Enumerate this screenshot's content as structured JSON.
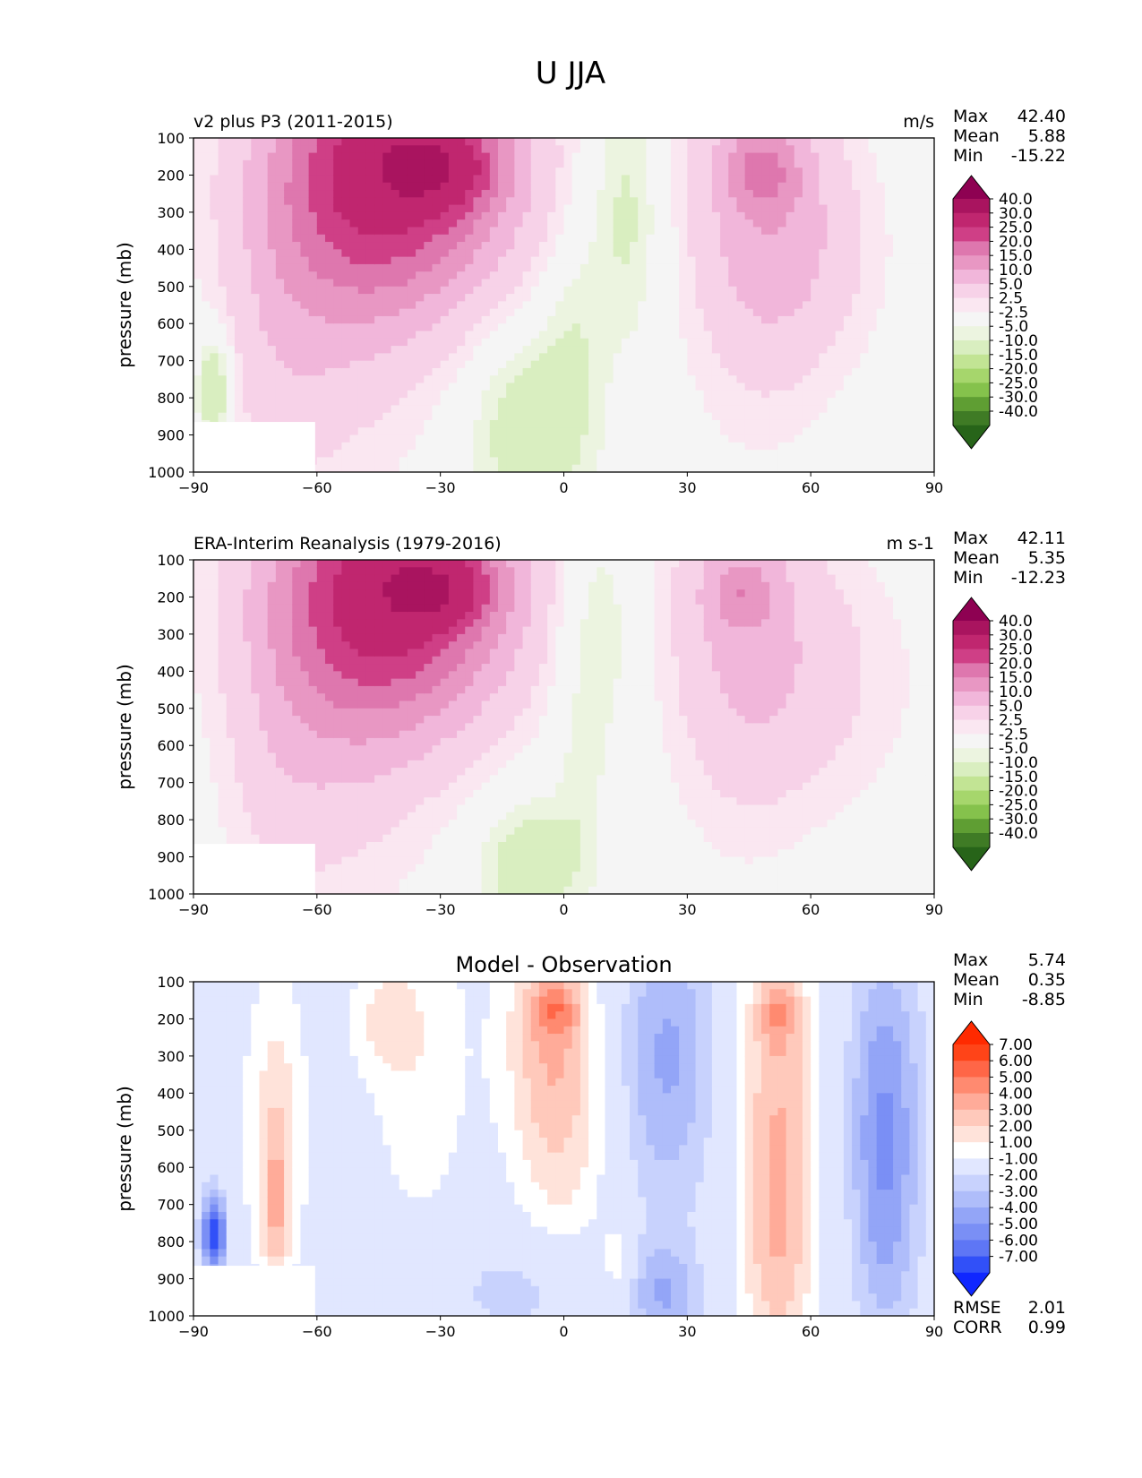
{
  "figure": {
    "title": "U JJA"
  },
  "chart_data": [
    {
      "type": "heatmap",
      "title": "v2 plus P3 (2011-2015)",
      "units": "m/s",
      "xlabel": "",
      "ylabel": "pressure (mb)",
      "xlim": [
        -90,
        90
      ],
      "ylim": [
        1000,
        100
      ],
      "xticks": [
        "−90",
        "−60",
        "−30",
        "0",
        "30",
        "60",
        "90"
      ],
      "yticks": [
        "100",
        "200",
        "300",
        "400",
        "500",
        "600",
        "700",
        "800",
        "900",
        "1000"
      ],
      "stats": [
        {
          "label": "Max",
          "value": "42.40"
        },
        {
          "label": "Mean",
          "value": "5.88"
        },
        {
          "label": "Min",
          "value": "-15.22"
        }
      ],
      "colorbar": {
        "labels": [
          "40.0",
          "30.0",
          "25.0",
          "20.0",
          "15.0",
          "10.0",
          "5.0",
          "2.5",
          "-2.5",
          "-5.0",
          "-10.0",
          "-15.0",
          "-20.0",
          "-25.0",
          "-30.0",
          "-40.0"
        ],
        "colors": [
          "#8e0152",
          "#a9145f",
          "#c0266f",
          "#cf3f86",
          "#de77ae",
          "#e897c3",
          "#f1b6da",
          "#f7d2e8",
          "#fae7f1",
          "#f5f5f5",
          "#ecf4e0",
          "#d9eec0",
          "#c2e494",
          "#a6d66c",
          "#85c24c",
          "#5f9e33",
          "#3f7b25",
          "#276419"
        ],
        "extend": "both"
      },
      "blobs": [
        {
          "lon": -40,
          "p": 190,
          "rx": 30,
          "ry": 360,
          "v": 30
        },
        {
          "lon": -30,
          "p": 180,
          "rx": 14,
          "ry": 110,
          "v": 14
        },
        {
          "lon": -55,
          "p": 400,
          "rx": 24,
          "ry": 620,
          "v": 8
        },
        {
          "lon": -70,
          "p": 700,
          "rx": 14,
          "ry": 420,
          "v": 4
        },
        {
          "lon": 47,
          "p": 250,
          "rx": 18,
          "ry": 540,
          "v": 12
        },
        {
          "lon": 48,
          "p": 190,
          "rx": 9,
          "ry": 100,
          "v": 10
        },
        {
          "lon": 62,
          "p": 400,
          "rx": 18,
          "ry": 320,
          "v": 5
        },
        {
          "lon": 15,
          "p": 300,
          "rx": 9,
          "ry": 350,
          "v": -7
        },
        {
          "lon": -8,
          "p": 880,
          "rx": 14,
          "ry": 260,
          "v": -9
        },
        {
          "lon": 2,
          "p": 600,
          "rx": 7,
          "ry": 300,
          "v": -4
        },
        {
          "lon": -85,
          "p": 780,
          "rx": 4,
          "ry": 150,
          "v": -12
        }
      ]
    },
    {
      "type": "heatmap",
      "title": "ERA-Interim Reanalysis (1979-2016)",
      "units": "m s-1",
      "xlabel": "",
      "ylabel": "pressure (mb)",
      "xlim": [
        -90,
        90
      ],
      "ylim": [
        1000,
        100
      ],
      "xticks": [
        "−90",
        "−60",
        "−30",
        "0",
        "30",
        "60",
        "90"
      ],
      "yticks": [
        "100",
        "200",
        "300",
        "400",
        "500",
        "600",
        "700",
        "800",
        "900",
        "1000"
      ],
      "stats": [
        {
          "label": "Max",
          "value": "42.11"
        },
        {
          "label": "Mean",
          "value": "5.35"
        },
        {
          "label": "Min",
          "value": "-12.23"
        }
      ],
      "colorbar": {
        "labels": [
          "40.0",
          "30.0",
          "25.0",
          "20.0",
          "15.0",
          "10.0",
          "5.0",
          "2.5",
          "-2.5",
          "-5.0",
          "-10.0",
          "-15.0",
          "-20.0",
          "-25.0",
          "-30.0",
          "-40.0"
        ],
        "colors": [
          "#8e0152",
          "#a9145f",
          "#c0266f",
          "#cf3f86",
          "#de77ae",
          "#e897c3",
          "#f1b6da",
          "#f7d2e8",
          "#fae7f1",
          "#f5f5f5",
          "#ecf4e0",
          "#d9eec0",
          "#c2e494",
          "#a6d66c",
          "#85c24c",
          "#5f9e33",
          "#3f7b25",
          "#276419"
        ],
        "extend": "both"
      },
      "blobs": [
        {
          "lon": -40,
          "p": 190,
          "rx": 30,
          "ry": 360,
          "v": 30
        },
        {
          "lon": -30,
          "p": 180,
          "rx": 13,
          "ry": 100,
          "v": 14
        },
        {
          "lon": -55,
          "p": 400,
          "rx": 24,
          "ry": 620,
          "v": 8
        },
        {
          "lon": -70,
          "p": 700,
          "rx": 13,
          "ry": 380,
          "v": 3
        },
        {
          "lon": 43,
          "p": 250,
          "rx": 18,
          "ry": 520,
          "v": 11
        },
        {
          "lon": 43,
          "p": 190,
          "rx": 8,
          "ry": 90,
          "v": 8
        },
        {
          "lon": 65,
          "p": 420,
          "rx": 22,
          "ry": 360,
          "v": 5
        },
        {
          "lon": 8,
          "p": 280,
          "rx": 10,
          "ry": 330,
          "v": -6
        },
        {
          "lon": -8,
          "p": 920,
          "rx": 12,
          "ry": 170,
          "v": -9
        },
        {
          "lon": 4,
          "p": 700,
          "rx": 6,
          "ry": 260,
          "v": -3
        }
      ]
    },
    {
      "type": "heatmap",
      "title": "Model - Observation",
      "units": "",
      "xlabel": "",
      "ylabel": "pressure (mb)",
      "xlim": [
        -90,
        90
      ],
      "ylim": [
        1000,
        100
      ],
      "xticks": [
        "−90",
        "−60",
        "−30",
        "0",
        "30",
        "60",
        "90"
      ],
      "yticks": [
        "100",
        "200",
        "300",
        "400",
        "500",
        "600",
        "700",
        "800",
        "900",
        "1000"
      ],
      "stats": [
        {
          "label": "Max",
          "value": "5.74"
        },
        {
          "label": "Mean",
          "value": "0.35"
        },
        {
          "label": "Min",
          "value": "-8.85"
        }
      ],
      "footer_stats": [
        {
          "label": "RMSE",
          "value": "2.01"
        },
        {
          "label": "CORR",
          "value": "0.99"
        }
      ],
      "colorbar": {
        "labels": [
          "7.00",
          "6.00",
          "5.00",
          "4.00",
          "3.00",
          "2.00",
          "1.00",
          "-1.00",
          "-2.00",
          "-3.00",
          "-4.00",
          "-5.00",
          "-6.00",
          "-7.00"
        ],
        "colors": [
          "#ff2a00",
          "#ff4418",
          "#ff6647",
          "#ff8a70",
          "#ffab99",
          "#ffc9bb",
          "#ffe3da",
          "#ffffff",
          "#e1e7ff",
          "#c8d2fd",
          "#afbdfa",
          "#93a5f7",
          "#7a8ff5",
          "#5e76f5",
          "#3150f8",
          "#0f27ff"
        ],
        "extend": "both"
      },
      "blobs": [
        {
          "lon": -70,
          "p": 500,
          "rx": 8,
          "ry": 450,
          "v": 2.6
        },
        {
          "lon": -70,
          "p": 720,
          "rx": 3,
          "ry": 220,
          "v": 2.5
        },
        {
          "lon": -35,
          "p": 300,
          "rx": 13,
          "ry": 520,
          "v": 1.8
        },
        {
          "lon": -3,
          "p": 250,
          "rx": 12,
          "ry": 340,
          "v": 3.5
        },
        {
          "lon": -2,
          "p": 170,
          "rx": 6,
          "ry": 80,
          "v": 2.5
        },
        {
          "lon": 0,
          "p": 650,
          "rx": 12,
          "ry": 400,
          "v": 1.6
        },
        {
          "lon": 13,
          "p": 870,
          "rx": 4,
          "ry": 120,
          "v": 2.2
        },
        {
          "lon": 25,
          "p": 300,
          "rx": 12,
          "ry": 420,
          "v": -3.2
        },
        {
          "lon": 25,
          "p": 950,
          "rx": 8,
          "ry": 140,
          "v": -2.5
        },
        {
          "lon": 52,
          "p": 450,
          "rx": 10,
          "ry": 580,
          "v": 4
        },
        {
          "lon": 52,
          "p": 180,
          "rx": 5,
          "ry": 90,
          "v": 2
        },
        {
          "lon": 52,
          "p": 900,
          "rx": 9,
          "ry": 250,
          "v": 1.6
        },
        {
          "lon": 78,
          "p": 400,
          "rx": 9,
          "ry": 420,
          "v": -3.5
        },
        {
          "lon": 78,
          "p": 800,
          "rx": 8,
          "ry": 350,
          "v": -2
        },
        {
          "lon": -5,
          "p": 930,
          "rx": 25,
          "ry": 150,
          "v": -1.8
        },
        {
          "lon": -85,
          "p": 780,
          "rx": 3,
          "ry": 110,
          "v": -7
        },
        {
          "lon": -45,
          "p": 200,
          "rx": 8,
          "ry": 160,
          "v": 1.5
        }
      ]
    }
  ]
}
